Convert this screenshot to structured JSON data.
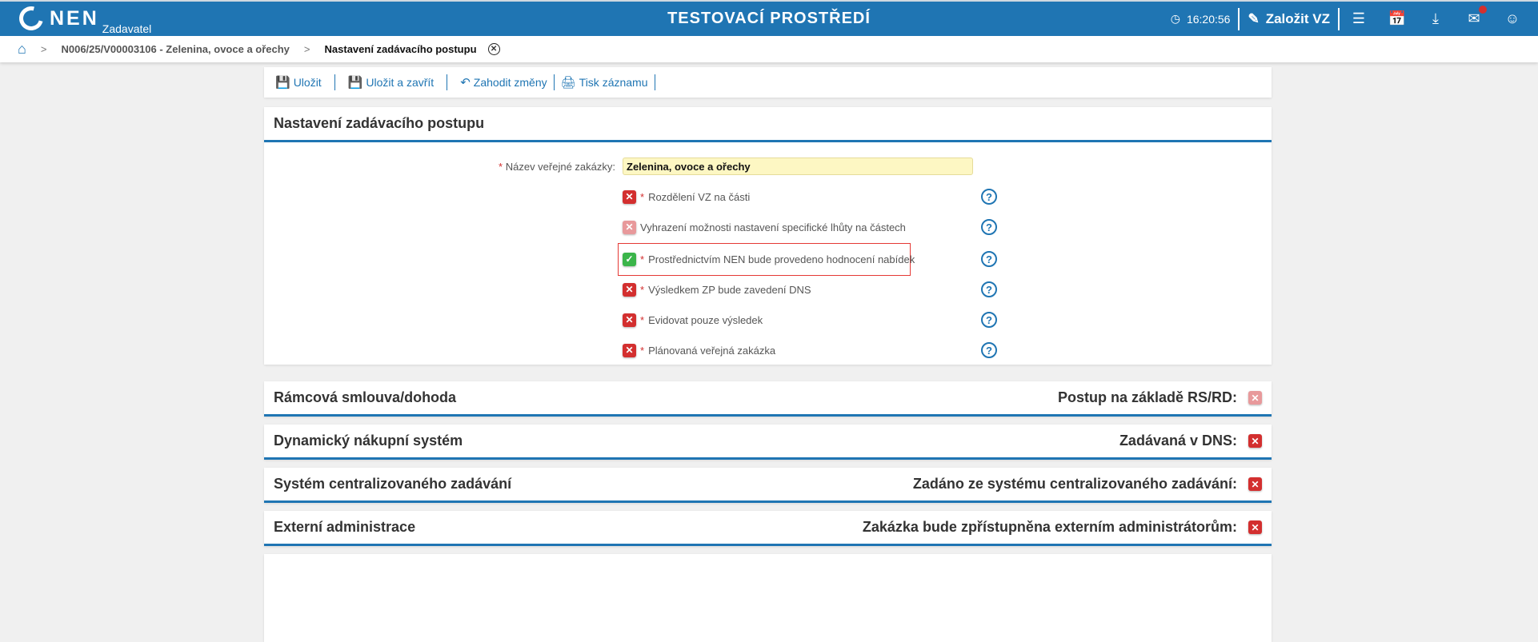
{
  "header": {
    "logo": "NEN",
    "logo_sub": "Zadavatel",
    "env_title": "TESTOVACÍ PROSTŘEDÍ",
    "time": "16:20:56",
    "create_label": "Založit VZ",
    "accent": "#1f75b3"
  },
  "breadcrumb": {
    "items": [
      "N006/25/V00003106 - Zelenina, ovoce a ořechy",
      "Nastavení zadávacího postupu"
    ]
  },
  "toolbar": {
    "save": "Uložit",
    "save_close": "Uložit a zavřít",
    "discard": "Zahodit změny",
    "print": "Tisk záznamu"
  },
  "main": {
    "title": "Nastavení zadávacího postupu",
    "name_label": "Název veřejné zakázky:",
    "name_value": "Zelenina, ovoce a ořechy",
    "options": [
      {
        "label": "Rozdělení VZ na části",
        "required": true,
        "state": "no"
      },
      {
        "label": "Vyhrazení možnosti nastavení specifické lhůty na částech",
        "required": false,
        "state": "disabled"
      },
      {
        "label": "Prostřednictvím NEN bude provedeno hodnocení nabídek",
        "required": true,
        "state": "yes"
      },
      {
        "label": "Výsledkem ZP bude zavedení DNS",
        "required": true,
        "state": "no"
      },
      {
        "label": "Evidovat pouze výsledek",
        "required": true,
        "state": "no"
      },
      {
        "label": "Plánovaná veřejná zakázka",
        "required": true,
        "state": "no"
      }
    ]
  },
  "sections": [
    {
      "title": "Rámcová smlouva/dohoda",
      "right": "Postup na základě RS/RD:",
      "state": "disabled"
    },
    {
      "title": "Dynamický nákupní systém",
      "right": "Zadávaná v DNS:",
      "state": "no"
    },
    {
      "title": "Systém centralizovaného zadávání",
      "right": "Zadáno ze systému centralizovaného zadávání:",
      "state": "no"
    },
    {
      "title": "Externí administrace",
      "right": "Zakázka bude zpřístupněna externím administrátorům:",
      "state": "no"
    }
  ]
}
